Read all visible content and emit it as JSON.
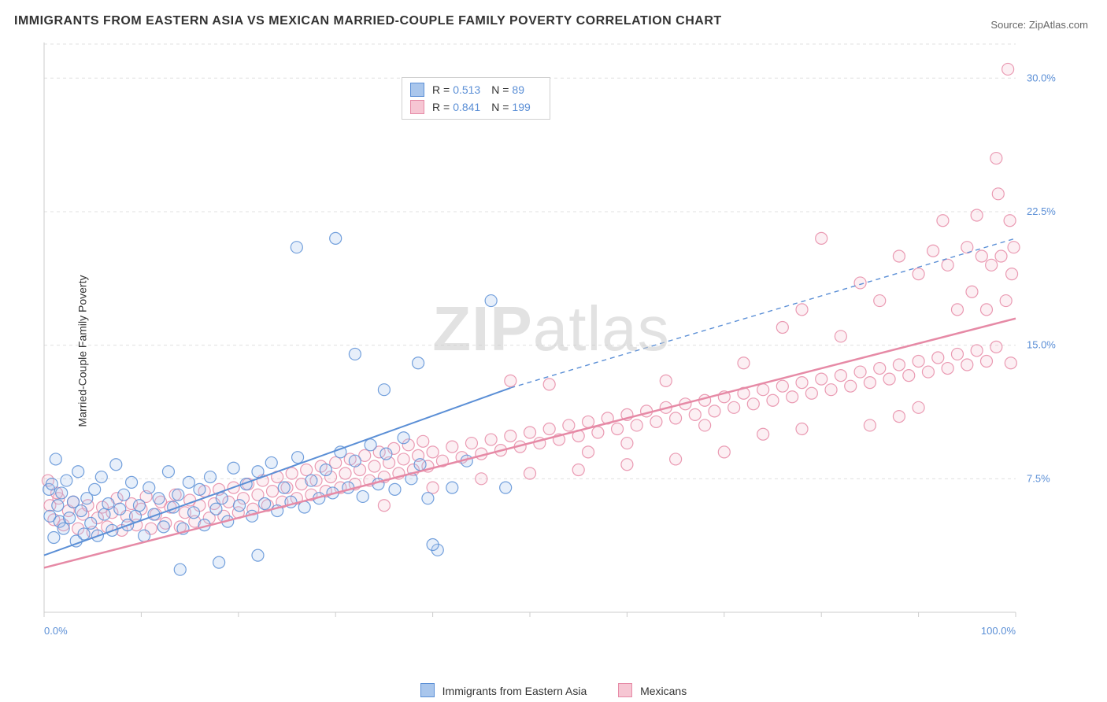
{
  "title": "IMMIGRANTS FROM EASTERN ASIA VS MEXICAN MARRIED-COUPLE FAMILY POVERTY CORRELATION CHART",
  "source_label": "Source:",
  "source_value": "ZipAtlas.com",
  "y_axis_label": "Married-Couple Family Poverty",
  "watermark": "ZIPatlas",
  "chart": {
    "type": "scatter",
    "background_color": "#ffffff",
    "plot_border_color": "#cccccc",
    "grid_color": "#e0e0e0",
    "grid_dash": "4,4",
    "xlim": [
      0,
      100
    ],
    "ylim": [
      0,
      32
    ],
    "x_ticks": [
      0,
      10,
      20,
      30,
      40,
      50,
      60,
      70,
      80,
      90,
      100
    ],
    "x_tick_labels": {
      "0": "0.0%",
      "100": "100.0%"
    },
    "y_ticks": [
      7.5,
      15.0,
      22.5,
      30.0
    ],
    "y_tick_labels": [
      "7.5%",
      "15.0%",
      "22.5%",
      "30.0%"
    ],
    "tick_label_color": "#5b8fd6",
    "tick_label_fontsize": 13,
    "marker_radius": 7.5,
    "marker_stroke_width": 1.2,
    "marker_fill_opacity": 0.28,
    "series": [
      {
        "name": "Immigrants from Eastern Asia",
        "color": "#5b8fd6",
        "fill": "#a9c6ec",
        "R": "0.513",
        "N": "89",
        "trend": {
          "x1": 0,
          "y1": 3.2,
          "x2": 48,
          "y2": 12.6,
          "dashed_to_x": 100,
          "dashed_to_y": 21.0,
          "width": 2
        },
        "points": [
          [
            0.5,
            6.9
          ],
          [
            0.6,
            5.4
          ],
          [
            0.8,
            7.2
          ],
          [
            1.0,
            4.2
          ],
          [
            1.2,
            8.6
          ],
          [
            1.4,
            6.0
          ],
          [
            1.6,
            5.1
          ],
          [
            1.8,
            6.7
          ],
          [
            2.0,
            4.7
          ],
          [
            2.3,
            7.4
          ],
          [
            2.6,
            5.3
          ],
          [
            3.0,
            6.2
          ],
          [
            3.3,
            4.0
          ],
          [
            3.5,
            7.9
          ],
          [
            3.8,
            5.7
          ],
          [
            4.1,
            4.4
          ],
          [
            4.4,
            6.4
          ],
          [
            4.8,
            5.0
          ],
          [
            5.2,
            6.9
          ],
          [
            5.5,
            4.3
          ],
          [
            5.9,
            7.6
          ],
          [
            6.2,
            5.5
          ],
          [
            6.6,
            6.1
          ],
          [
            7.0,
            4.6
          ],
          [
            7.4,
            8.3
          ],
          [
            7.8,
            5.8
          ],
          [
            8.2,
            6.6
          ],
          [
            8.6,
            4.9
          ],
          [
            9.0,
            7.3
          ],
          [
            9.4,
            5.4
          ],
          [
            9.8,
            6.0
          ],
          [
            10.3,
            4.3
          ],
          [
            10.8,
            7.0
          ],
          [
            11.3,
            5.5
          ],
          [
            11.8,
            6.4
          ],
          [
            12.3,
            4.8
          ],
          [
            12.8,
            7.9
          ],
          [
            13.3,
            5.9
          ],
          [
            13.8,
            6.6
          ],
          [
            14.3,
            4.7
          ],
          [
            14.9,
            7.3
          ],
          [
            15.4,
            5.6
          ],
          [
            16.0,
            6.9
          ],
          [
            16.5,
            4.9
          ],
          [
            17.1,
            7.6
          ],
          [
            17.7,
            5.8
          ],
          [
            18.3,
            6.4
          ],
          [
            18.9,
            5.1
          ],
          [
            19.5,
            8.1
          ],
          [
            20.1,
            6.0
          ],
          [
            20.8,
            7.2
          ],
          [
            21.4,
            5.4
          ],
          [
            22.0,
            7.9
          ],
          [
            22.7,
            6.1
          ],
          [
            23.4,
            8.4
          ],
          [
            24.0,
            5.7
          ],
          [
            24.7,
            7.0
          ],
          [
            25.4,
            6.2
          ],
          [
            26.1,
            8.7
          ],
          [
            26.8,
            5.9
          ],
          [
            27.5,
            7.4
          ],
          [
            28.3,
            6.4
          ],
          [
            29.0,
            8.0
          ],
          [
            29.7,
            6.7
          ],
          [
            30.5,
            9.0
          ],
          [
            31.3,
            7.0
          ],
          [
            32.0,
            8.5
          ],
          [
            32.8,
            6.5
          ],
          [
            33.6,
            9.4
          ],
          [
            34.4,
            7.2
          ],
          [
            35.2,
            8.9
          ],
          [
            36.1,
            6.9
          ],
          [
            37.0,
            9.8
          ],
          [
            37.8,
            7.5
          ],
          [
            38.7,
            8.3
          ],
          [
            39.5,
            6.4
          ],
          [
            40.5,
            3.5
          ],
          [
            42.0,
            7.0
          ],
          [
            43.5,
            8.5
          ],
          [
            46.0,
            17.5
          ],
          [
            47.5,
            7.0
          ],
          [
            14.0,
            2.4
          ],
          [
            18.0,
            2.8
          ],
          [
            22.0,
            3.2
          ],
          [
            26.0,
            20.5
          ],
          [
            30.0,
            21.0
          ],
          [
            32.0,
            14.5
          ],
          [
            35.0,
            12.5
          ],
          [
            38.5,
            14.0
          ],
          [
            40.0,
            3.8
          ]
        ]
      },
      {
        "name": "Mexicans",
        "color": "#e68aa6",
        "fill": "#f6c6d3",
        "R": "0.841",
        "N": "199",
        "trend": {
          "x1": 0,
          "y1": 2.5,
          "x2": 100,
          "y2": 16.5,
          "width": 2.5
        },
        "points": [
          [
            0.6,
            6.0
          ],
          [
            1.0,
            5.2
          ],
          [
            1.5,
            6.4
          ],
          [
            2.0,
            4.9
          ],
          [
            2.5,
            5.7
          ],
          [
            3.0,
            6.2
          ],
          [
            3.5,
            4.7
          ],
          [
            4.0,
            5.5
          ],
          [
            4.5,
            6.0
          ],
          [
            5.0,
            4.5
          ],
          [
            5.5,
            5.3
          ],
          [
            6.0,
            5.9
          ],
          [
            6.5,
            4.8
          ],
          [
            7.0,
            5.6
          ],
          [
            7.5,
            6.4
          ],
          [
            8.0,
            4.6
          ],
          [
            8.5,
            5.4
          ],
          [
            9.0,
            6.1
          ],
          [
            9.5,
            4.9
          ],
          [
            10.0,
            5.8
          ],
          [
            10.5,
            6.5
          ],
          [
            11.0,
            4.7
          ],
          [
            11.5,
            5.5
          ],
          [
            12.0,
            6.2
          ],
          [
            12.5,
            5.0
          ],
          [
            13.0,
            5.9
          ],
          [
            13.5,
            6.6
          ],
          [
            14.0,
            4.8
          ],
          [
            14.5,
            5.6
          ],
          [
            15.0,
            6.3
          ],
          [
            15.5,
            5.1
          ],
          [
            16.0,
            6.0
          ],
          [
            16.5,
            6.8
          ],
          [
            17.0,
            5.3
          ],
          [
            17.5,
            6.1
          ],
          [
            18.0,
            6.9
          ],
          [
            18.5,
            5.4
          ],
          [
            19.0,
            6.2
          ],
          [
            19.5,
            7.0
          ],
          [
            20.0,
            5.6
          ],
          [
            20.5,
            6.4
          ],
          [
            21.0,
            7.2
          ],
          [
            21.5,
            5.8
          ],
          [
            22.0,
            6.6
          ],
          [
            22.5,
            7.4
          ],
          [
            23.0,
            6.0
          ],
          [
            23.5,
            6.8
          ],
          [
            24.0,
            7.6
          ],
          [
            24.5,
            6.2
          ],
          [
            25.0,
            7.0
          ],
          [
            25.5,
            7.8
          ],
          [
            26.0,
            6.4
          ],
          [
            26.5,
            7.2
          ],
          [
            27.0,
            8.0
          ],
          [
            27.5,
            6.6
          ],
          [
            28.0,
            7.4
          ],
          [
            28.5,
            8.2
          ],
          [
            29.0,
            6.8
          ],
          [
            29.5,
            7.6
          ],
          [
            30.0,
            8.4
          ],
          [
            30.5,
            7.0
          ],
          [
            31.0,
            7.8
          ],
          [
            31.5,
            8.6
          ],
          [
            32.0,
            7.2
          ],
          [
            32.5,
            8.0
          ],
          [
            33.0,
            8.8
          ],
          [
            33.5,
            7.4
          ],
          [
            34.0,
            8.2
          ],
          [
            34.5,
            9.0
          ],
          [
            35.0,
            7.6
          ],
          [
            35.5,
            8.4
          ],
          [
            36.0,
            9.2
          ],
          [
            36.5,
            7.8
          ],
          [
            37.0,
            8.6
          ],
          [
            37.5,
            9.4
          ],
          [
            38.0,
            8.0
          ],
          [
            38.5,
            8.8
          ],
          [
            39.0,
            9.6
          ],
          [
            39.5,
            8.2
          ],
          [
            40.0,
            9.0
          ],
          [
            41.0,
            8.5
          ],
          [
            42.0,
            9.3
          ],
          [
            43.0,
            8.7
          ],
          [
            44.0,
            9.5
          ],
          [
            45.0,
            8.9
          ],
          [
            46.0,
            9.7
          ],
          [
            47.0,
            9.1
          ],
          [
            48.0,
            9.9
          ],
          [
            49.0,
            9.3
          ],
          [
            50.0,
            10.1
          ],
          [
            51.0,
            9.5
          ],
          [
            52.0,
            10.3
          ],
          [
            53.0,
            9.7
          ],
          [
            54.0,
            10.5
          ],
          [
            55.0,
            9.9
          ],
          [
            56.0,
            10.7
          ],
          [
            57.0,
            10.1
          ],
          [
            58.0,
            10.9
          ],
          [
            59.0,
            10.3
          ],
          [
            60.0,
            11.1
          ],
          [
            61.0,
            10.5
          ],
          [
            62.0,
            11.3
          ],
          [
            63.0,
            10.7
          ],
          [
            64.0,
            11.5
          ],
          [
            65.0,
            10.9
          ],
          [
            66.0,
            11.7
          ],
          [
            67.0,
            11.1
          ],
          [
            68.0,
            11.9
          ],
          [
            69.0,
            11.3
          ],
          [
            70.0,
            12.1
          ],
          [
            71.0,
            11.5
          ],
          [
            72.0,
            12.3
          ],
          [
            73.0,
            11.7
          ],
          [
            74.0,
            12.5
          ],
          [
            75.0,
            11.9
          ],
          [
            76.0,
            12.7
          ],
          [
            77.0,
            12.1
          ],
          [
            78.0,
            12.9
          ],
          [
            79.0,
            12.3
          ],
          [
            80.0,
            13.1
          ],
          [
            81.0,
            12.5
          ],
          [
            82.0,
            13.3
          ],
          [
            83.0,
            12.7
          ],
          [
            84.0,
            13.5
          ],
          [
            85.0,
            12.9
          ],
          [
            86.0,
            13.7
          ],
          [
            87.0,
            13.1
          ],
          [
            88.0,
            13.9
          ],
          [
            89.0,
            13.3
          ],
          [
            90.0,
            14.1
          ],
          [
            91.0,
            13.5
          ],
          [
            92.0,
            14.3
          ],
          [
            93.0,
            13.7
          ],
          [
            94.0,
            14.5
          ],
          [
            95.0,
            13.9
          ],
          [
            96.0,
            14.7
          ],
          [
            97.0,
            14.1
          ],
          [
            98.0,
            14.9
          ],
          [
            35.0,
            6.0
          ],
          [
            40.0,
            7.0
          ],
          [
            45.0,
            7.5
          ],
          [
            50.0,
            7.8
          ],
          [
            55.0,
            8.0
          ],
          [
            60.0,
            8.3
          ],
          [
            65.0,
            8.6
          ],
          [
            70.0,
            9.0
          ],
          [
            48.0,
            13.0
          ],
          [
            52.0,
            12.8
          ],
          [
            56.0,
            9.0
          ],
          [
            60.0,
            9.5
          ],
          [
            64.0,
            13.0
          ],
          [
            68.0,
            10.5
          ],
          [
            72.0,
            14.0
          ],
          [
            76.0,
            16.0
          ],
          [
            78.0,
            17.0
          ],
          [
            80.0,
            21.0
          ],
          [
            82.0,
            15.5
          ],
          [
            84.0,
            18.5
          ],
          [
            86.0,
            17.5
          ],
          [
            88.0,
            20.0
          ],
          [
            90.0,
            19.0
          ],
          [
            91.5,
            20.3
          ],
          [
            92.5,
            22.0
          ],
          [
            93.0,
            19.5
          ],
          [
            94.0,
            17.0
          ],
          [
            95.0,
            20.5
          ],
          [
            95.5,
            18.0
          ],
          [
            96.0,
            22.3
          ],
          [
            96.5,
            20.0
          ],
          [
            97.0,
            17.0
          ],
          [
            97.5,
            19.5
          ],
          [
            98.0,
            25.5
          ],
          [
            98.2,
            23.5
          ],
          [
            98.5,
            20.0
          ],
          [
            99.0,
            17.5
          ],
          [
            99.2,
            30.5
          ],
          [
            99.4,
            22.0
          ],
          [
            99.5,
            14.0
          ],
          [
            99.6,
            19.0
          ],
          [
            99.8,
            20.5
          ],
          [
            85.0,
            10.5
          ],
          [
            88.0,
            11.0
          ],
          [
            90.0,
            11.5
          ],
          [
            74.0,
            10.0
          ],
          [
            78.0,
            10.3
          ],
          [
            0.4,
            7.4
          ],
          [
            1.3,
            6.7
          ]
        ]
      }
    ]
  },
  "legend_bottom": [
    {
      "swatch_fill": "#a9c6ec",
      "swatch_border": "#5b8fd6",
      "label": "Immigrants from Eastern Asia"
    },
    {
      "swatch_fill": "#f6c6d3",
      "swatch_border": "#e68aa6",
      "label": "Mexicans"
    }
  ]
}
